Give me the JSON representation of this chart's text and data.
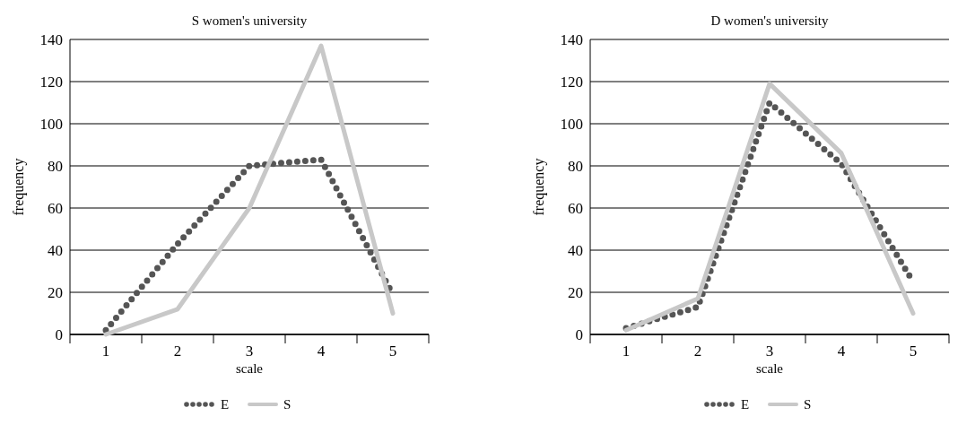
{
  "chart_data": [
    {
      "type": "line",
      "title": "S women's university",
      "xlabel": "scale",
      "ylabel": "frequency",
      "categories": [
        "1",
        "2",
        "3",
        "4",
        "5"
      ],
      "series": [
        {
          "name": "E",
          "color": "#555555",
          "values": [
            2,
            43,
            80,
            83,
            19
          ],
          "line_style": "dotted"
        },
        {
          "name": "S",
          "color": "#c8c8c8",
          "values": [
            0,
            12,
            60,
            137,
            10
          ],
          "line_style": "solid"
        }
      ],
      "ylim": [
        0,
        140
      ],
      "yticks": [
        0,
        20,
        40,
        60,
        80,
        100,
        120,
        140
      ],
      "grid": "y",
      "legend": "bottom"
    },
    {
      "type": "line",
      "title": "D women's university",
      "xlabel": "scale",
      "ylabel": "frequency",
      "categories": [
        "1",
        "2",
        "3",
        "4",
        "5"
      ],
      "series": [
        {
          "name": "E",
          "color": "#555555",
          "values": [
            3,
            13,
            110,
            81,
            25
          ],
          "line_style": "dotted"
        },
        {
          "name": "S",
          "color": "#c8c8c8",
          "values": [
            2,
            17,
            119,
            86,
            10
          ],
          "line_style": "solid"
        }
      ],
      "ylim": [
        0,
        140
      ],
      "yticks": [
        0,
        20,
        40,
        60,
        80,
        100,
        120,
        140
      ],
      "grid": "y",
      "legend": "bottom"
    }
  ]
}
